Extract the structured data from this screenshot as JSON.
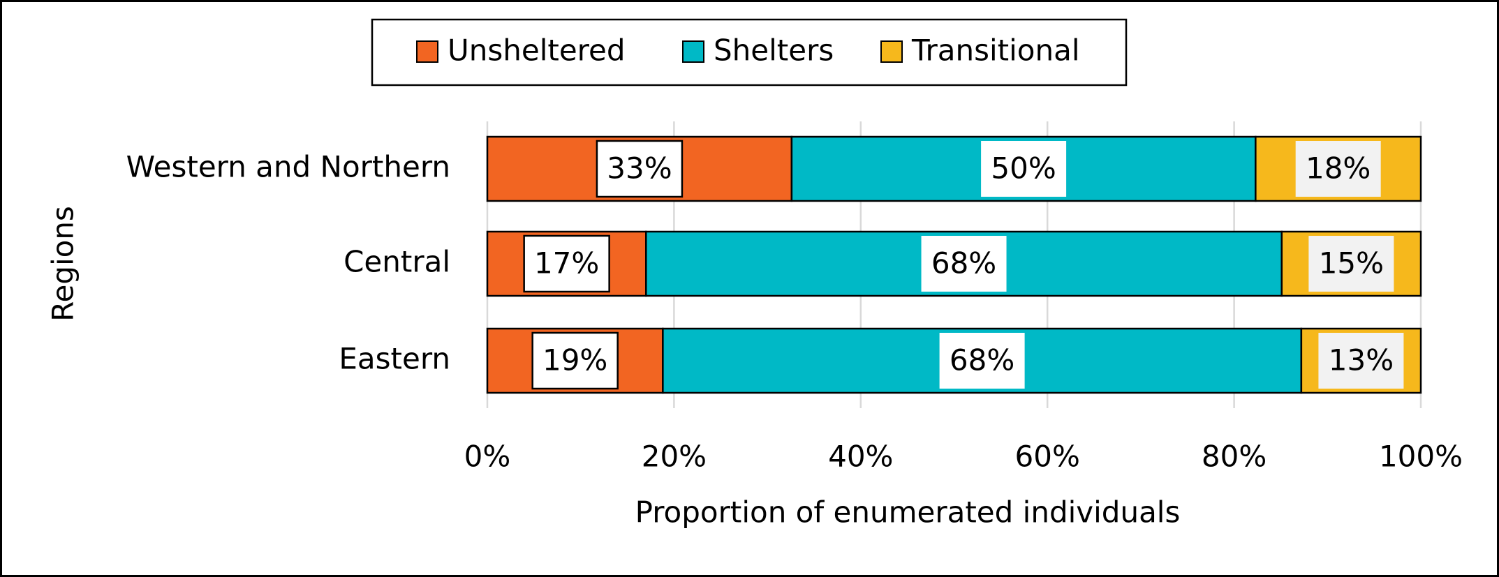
{
  "chart_data": {
    "type": "stacked-bar-horizontal",
    "categories": [
      "Western and Northern",
      "Central",
      "Eastern"
    ],
    "series": [
      {
        "name": "Unsheltered",
        "color": "#f26522",
        "values": [
          32.6,
          17,
          18.8
        ],
        "value_labels": [
          "33%",
          "17%",
          "19%"
        ]
      },
      {
        "name": "Shelters",
        "color": "#00b9c6",
        "values": [
          49.7,
          68.1,
          68.4
        ],
        "value_labels": [
          "50%",
          "68%",
          "68%"
        ]
      },
      {
        "name": "Transitional",
        "color": "#f6b81c",
        "values": [
          17.7,
          14.9,
          12.8
        ],
        "value_labels": [
          "18%",
          "15%",
          "13%"
        ]
      }
    ],
    "xlim": [
      0,
      100
    ],
    "xticks": [
      {
        "value": 0,
        "label": "0%"
      },
      {
        "value": 20,
        "label": "20%"
      },
      {
        "value": 40,
        "label": "40%"
      },
      {
        "value": 60,
        "label": "60%"
      },
      {
        "value": 80,
        "label": "80%"
      },
      {
        "value": 100,
        "label": "100%"
      }
    ],
    "xlabel": "Proportion of enumerated individuals",
    "ylabel": "Regions",
    "grid": true,
    "legend": "top"
  }
}
